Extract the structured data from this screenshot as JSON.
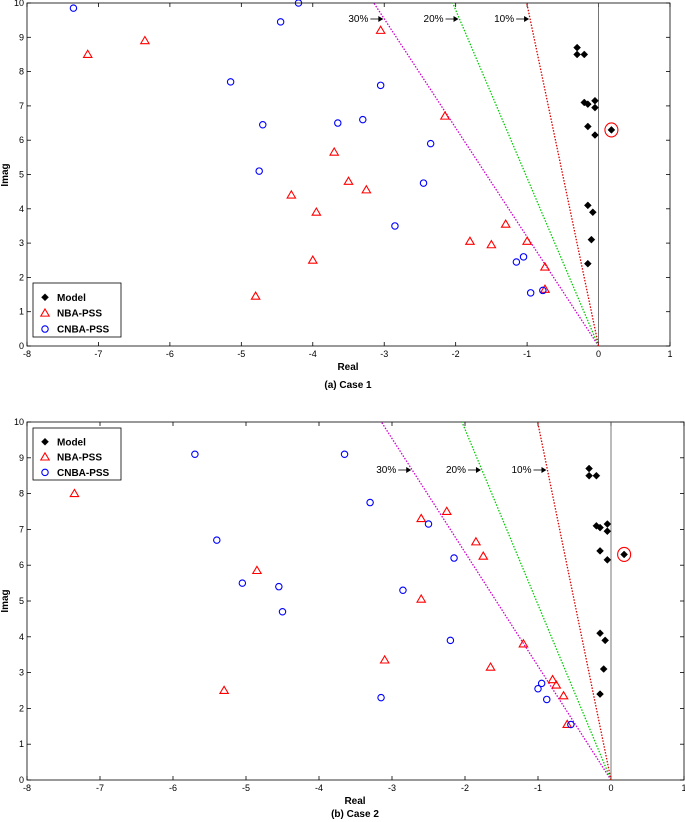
{
  "chart_data": [
    {
      "type": "scatter",
      "caption": "(a) Case 1",
      "xlabel": "Real",
      "ylabel": "Imag",
      "xlim": [
        -8,
        1
      ],
      "ylim": [
        0,
        10
      ],
      "xticks": [
        -8,
        -7,
        -6,
        -5,
        -4,
        -3,
        -2,
        -1,
        0,
        1
      ],
      "yticks": [
        0,
        1,
        2,
        3,
        4,
        5,
        6,
        7,
        8,
        9,
        10
      ],
      "legend": {
        "position": "bottom-left",
        "entries": [
          "Model",
          "NBA-PSS",
          "CNBA-PSS"
        ]
      },
      "damping_lines": [
        {
          "label": "30%",
          "color": "#cc00cc",
          "ratio": 0.3
        },
        {
          "label": "20%",
          "color": "#00cc00",
          "ratio": 0.2
        },
        {
          "label": "10%",
          "color": "#dd0000",
          "ratio": 0.1
        }
      ],
      "highlight": {
        "x": 0.18,
        "y": 6.3
      },
      "series": [
        {
          "name": "Model",
          "marker": "diamond",
          "color": "#000000",
          "points": [
            [
              -0.3,
              8.7
            ],
            [
              -0.3,
              8.5
            ],
            [
              -0.2,
              8.5
            ],
            [
              -0.2,
              7.1
            ],
            [
              -0.15,
              7.05
            ],
            [
              -0.05,
              7.15
            ],
            [
              -0.05,
              6.95
            ],
            [
              -0.15,
              6.4
            ],
            [
              -0.05,
              6.15
            ],
            [
              0.18,
              6.3
            ],
            [
              -0.15,
              4.1
            ],
            [
              -0.08,
              3.9
            ],
            [
              -0.1,
              3.1
            ],
            [
              -0.15,
              2.4
            ]
          ]
        },
        {
          "name": "NBA-PSS",
          "marker": "triangle",
          "color": "#ff0000",
          "points": [
            [
              -7.15,
              8.5
            ],
            [
              -6.35,
              8.9
            ],
            [
              -3.05,
              9.2
            ],
            [
              -2.15,
              6.7
            ],
            [
              -3.7,
              5.65
            ],
            [
              -3.5,
              4.8
            ],
            [
              -3.25,
              4.55
            ],
            [
              -4.3,
              4.4
            ],
            [
              -3.95,
              3.9
            ],
            [
              -1.3,
              3.55
            ],
            [
              -1.8,
              3.05
            ],
            [
              -1.5,
              2.95
            ],
            [
              -1.0,
              3.05
            ],
            [
              -4.0,
              2.5
            ],
            [
              -0.75,
              2.3
            ],
            [
              -0.75,
              1.65
            ],
            [
              -4.8,
              1.45
            ]
          ]
        },
        {
          "name": "CNBA-PSS",
          "marker": "circle",
          "color": "#0000ff",
          "points": [
            [
              -7.35,
              9.85
            ],
            [
              -4.2,
              10.0
            ],
            [
              -4.45,
              9.45
            ],
            [
              -5.15,
              7.7
            ],
            [
              -3.05,
              7.6
            ],
            [
              -4.7,
              6.45
            ],
            [
              -3.65,
              6.5
            ],
            [
              -3.3,
              6.6
            ],
            [
              -2.35,
              5.9
            ],
            [
              -4.75,
              5.1
            ],
            [
              -2.45,
              4.75
            ],
            [
              -2.85,
              3.5
            ],
            [
              -1.05,
              2.6
            ],
            [
              -1.15,
              2.45
            ],
            [
              -0.95,
              1.55
            ],
            [
              -0.78,
              1.62
            ]
          ]
        }
      ]
    },
    {
      "type": "scatter",
      "caption": "(b) Case 2",
      "xlabel": "Real",
      "ylabel": "Imag",
      "xlim": [
        -8,
        1
      ],
      "ylim": [
        0,
        10
      ],
      "xticks": [
        -8,
        -7,
        -6,
        -5,
        -4,
        -3,
        -2,
        -1,
        0,
        1
      ],
      "yticks": [
        0,
        1,
        2,
        3,
        4,
        5,
        6,
        7,
        8,
        9,
        10
      ],
      "legend": {
        "position": "top-left",
        "entries": [
          "Model",
          "NBA-PSS",
          "CNBA-PSS"
        ]
      },
      "damping_lines": [
        {
          "label": "30%",
          "color": "#cc00cc",
          "ratio": 0.3
        },
        {
          "label": "20%",
          "color": "#00cc00",
          "ratio": 0.2
        },
        {
          "label": "10%",
          "color": "#dd0000",
          "ratio": 0.1
        }
      ],
      "highlight": {
        "x": 0.18,
        "y": 6.3
      },
      "series": [
        {
          "name": "Model",
          "marker": "diamond",
          "color": "#000000",
          "points": [
            [
              -0.3,
              8.7
            ],
            [
              -0.3,
              8.5
            ],
            [
              -0.2,
              8.5
            ],
            [
              -0.2,
              7.1
            ],
            [
              -0.15,
              7.05
            ],
            [
              -0.05,
              7.15
            ],
            [
              -0.05,
              6.95
            ],
            [
              -0.15,
              6.4
            ],
            [
              -0.05,
              6.15
            ],
            [
              0.18,
              6.3
            ],
            [
              -0.15,
              4.1
            ],
            [
              -0.08,
              3.9
            ],
            [
              -0.1,
              3.1
            ],
            [
              -0.15,
              2.4
            ]
          ]
        },
        {
          "name": "NBA-PSS",
          "marker": "triangle",
          "color": "#ff0000",
          "points": [
            [
              -7.35,
              8.0
            ],
            [
              -2.25,
              7.5
            ],
            [
              -2.6,
              7.3
            ],
            [
              -1.85,
              6.65
            ],
            [
              -1.75,
              6.25
            ],
            [
              -4.85,
              5.85
            ],
            [
              -2.6,
              5.05
            ],
            [
              -3.1,
              3.35
            ],
            [
              -1.2,
              3.8
            ],
            [
              -1.65,
              3.15
            ],
            [
              -0.8,
              2.8
            ],
            [
              -0.75,
              2.65
            ],
            [
              -0.65,
              2.35
            ],
            [
              -5.3,
              2.5
            ],
            [
              -0.6,
              1.55
            ]
          ]
        },
        {
          "name": "CNBA-PSS",
          "marker": "circle",
          "color": "#0000ff",
          "points": [
            [
              -5.7,
              9.1
            ],
            [
              -3.65,
              9.1
            ],
            [
              -3.3,
              7.75
            ],
            [
              -2.5,
              7.15
            ],
            [
              -5.4,
              6.7
            ],
            [
              -2.15,
              6.2
            ],
            [
              -5.05,
              5.5
            ],
            [
              -4.55,
              5.4
            ],
            [
              -2.85,
              5.3
            ],
            [
              -4.5,
              4.7
            ],
            [
              -2.2,
              3.9
            ],
            [
              -3.15,
              2.3
            ],
            [
              -0.95,
              2.7
            ],
            [
              -1.0,
              2.55
            ],
            [
              -0.88,
              2.25
            ],
            [
              -0.55,
              1.55
            ]
          ]
        }
      ]
    }
  ]
}
